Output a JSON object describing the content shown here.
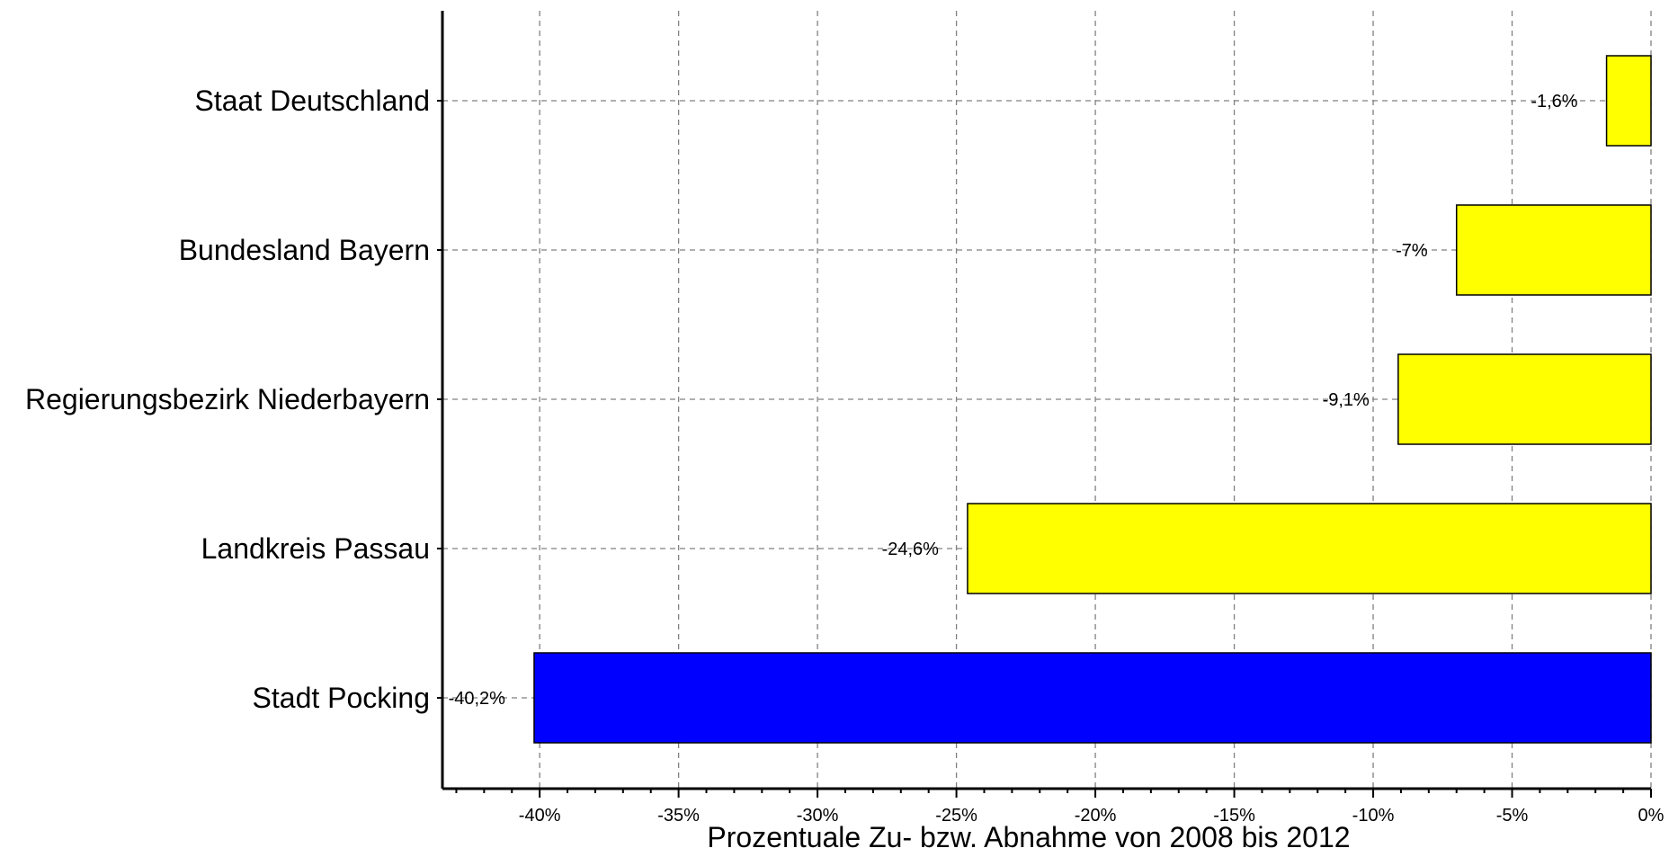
{
  "chart_data": {
    "type": "bar",
    "orientation": "horizontal",
    "title": "",
    "xlabel": "Prozentuale Zu- bzw. Abnahme von 2008 bis 2012",
    "ylabel": "",
    "xlim": [
      -43.5,
      0
    ],
    "x_ticks": [
      -40,
      -35,
      -30,
      -25,
      -20,
      -15,
      -10,
      -5,
      0
    ],
    "x_tick_labels": [
      "-40%",
      "-35%",
      "-30%",
      "-25%",
      "-20%",
      "-15%",
      "-10%",
      "-5%",
      "0%"
    ],
    "grid": true,
    "legend": "none",
    "categories": [
      "Staat Deutschland",
      "Bundesland Bayern",
      "Regierungsbezirk Niederbayern",
      "Landkreis Passau",
      "Stadt Pocking"
    ],
    "values": [
      -1.6,
      -7,
      -9.1,
      -24.6,
      -40.2
    ],
    "data_labels": [
      "-1,6%",
      "-7%",
      "-9,1%",
      "-24,6%",
      "-40,2%"
    ],
    "colors": [
      "#ffff00",
      "#ffff00",
      "#ffff00",
      "#ffff00",
      "#0000ff"
    ]
  }
}
